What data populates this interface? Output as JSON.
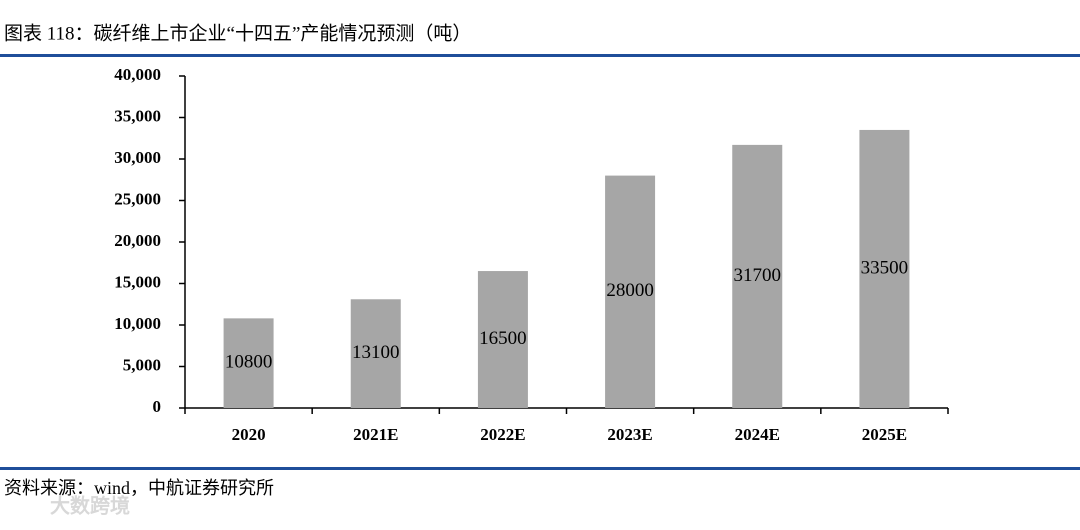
{
  "title": "图表 118：碳纤维上市企业“十四五”产能情况预测（吨）",
  "source": "资料来源：wind，中航证券研究所",
  "watermark": "大数跨境",
  "chart_data": {
    "type": "bar",
    "categories": [
      "2020",
      "2021E",
      "2022E",
      "2023E",
      "2024E",
      "2025E"
    ],
    "values": [
      10800,
      13100,
      16500,
      28000,
      31700,
      33500
    ],
    "color": "#a6a6a6",
    "ylim": [
      0,
      40000
    ],
    "yticks": [
      0,
      {
        "value": 5000,
        "label": "5,000"
      },
      {
        "value": 10000,
        "label": "10,000"
      },
      {
        "value": 15000,
        "label": "15,000"
      },
      {
        "value": 20000,
        "label": "20,000"
      },
      {
        "value": 25000,
        "label": "25,000"
      },
      {
        "value": 30000,
        "label": "30,000"
      },
      {
        "value": 35000,
        "label": "35,000"
      },
      {
        "value": 40000,
        "label": "40,000"
      }
    ],
    "grid": false
  }
}
